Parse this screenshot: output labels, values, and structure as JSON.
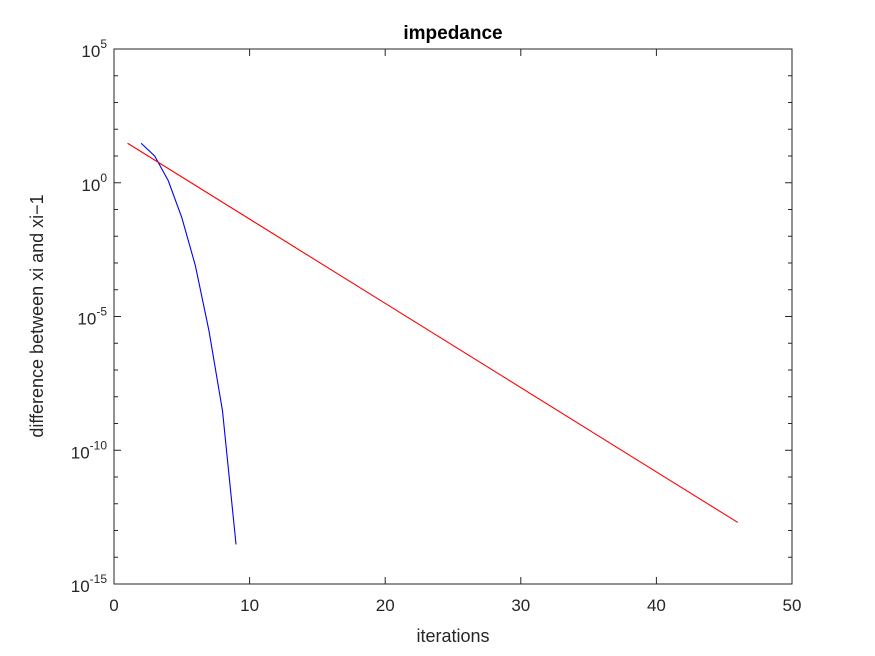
{
  "chart_data": {
    "type": "line",
    "title": "impedance",
    "xlabel": "iterations",
    "ylabel": "difference between xi and xi−1",
    "xlim": [
      0,
      50
    ],
    "ylim": [
      1e-15,
      100000.0
    ],
    "yscale": "log",
    "x_ticks": [
      "0",
      "10",
      "20",
      "30",
      "40",
      "50"
    ],
    "y_ticks": [
      {
        "base": "10",
        "exp": "-15"
      },
      {
        "base": "10",
        "exp": "-10"
      },
      {
        "base": "10",
        "exp": "-5"
      },
      {
        "base": "10",
        "exp": "0"
      },
      {
        "base": "10",
        "exp": "5"
      }
    ],
    "grid": false,
    "legend": "none",
    "series": [
      {
        "color": "#0000ff",
        "x": [
          2,
          3,
          4,
          5,
          6,
          7,
          8,
          9
        ],
        "y": [
          30,
          10,
          1.2,
          0.05,
          0.0008,
          3e-06,
          3e-09,
          3e-14
        ]
      },
      {
        "color": "#ff0000",
        "x": [
          1,
          46
        ],
        "y": [
          30,
          2e-13
        ]
      }
    ]
  }
}
